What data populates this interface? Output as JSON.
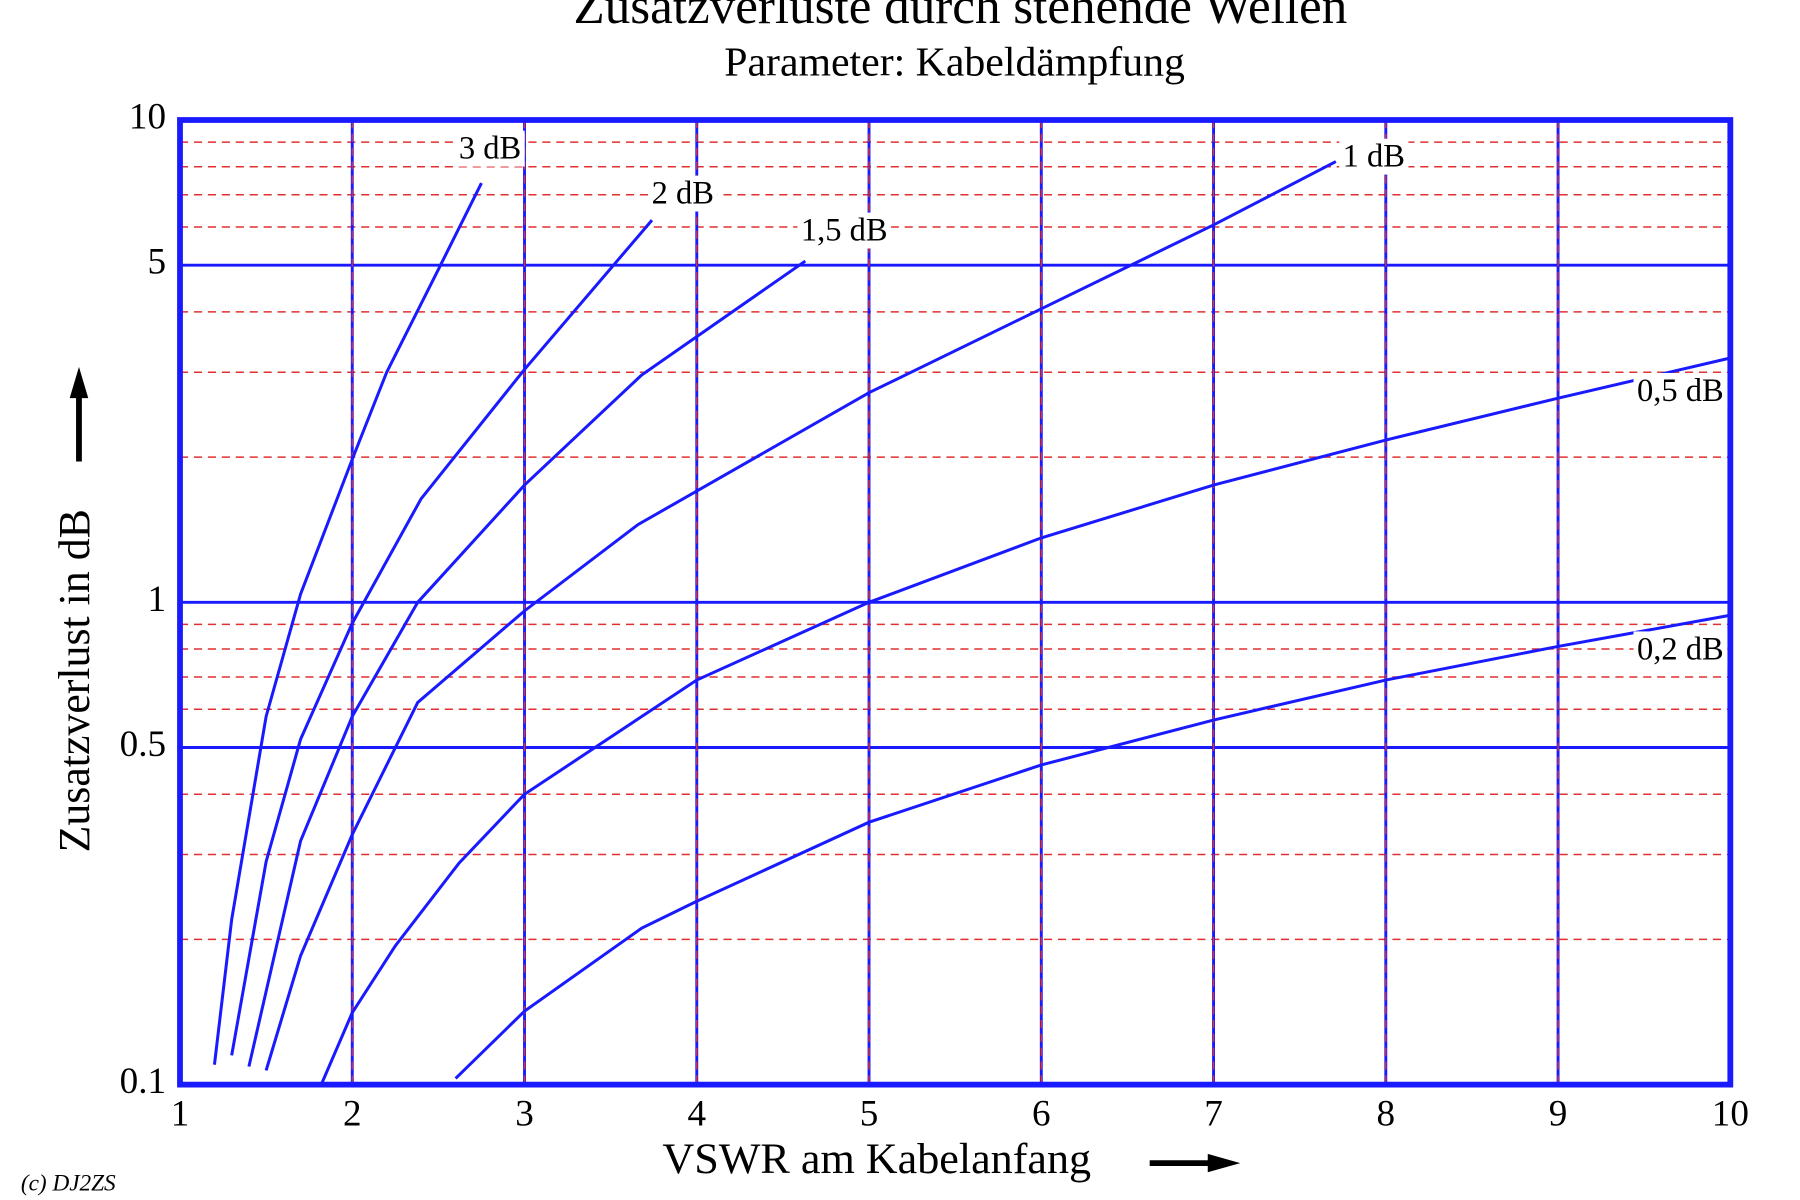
{
  "chart_data": {
    "type": "line",
    "title": "Zusatzverluste durch stehende Wellen",
    "subtitle": "Parameter: Kabeldämpfung",
    "x_label": "VSWR am Kabelanfang",
    "y_label": "Zusatzverlust in dB",
    "credit": "(c) DJ2ZS",
    "log_y": true,
    "grid": true,
    "xlim": [
      1,
      10
    ],
    "xticks": [
      1,
      2,
      3,
      4,
      5,
      6,
      7,
      8,
      9,
      10
    ],
    "ylim": [
      0.1,
      10
    ],
    "yticks": [
      0.1,
      0.5,
      1,
      5,
      10
    ],
    "minor_yticks": [
      0.2,
      0.3,
      0.4,
      0.6,
      0.7,
      0.8,
      0.9,
      2,
      3,
      4,
      6,
      7,
      8,
      9
    ],
    "series": [
      {
        "name": "3 dB",
        "color": "#1a1aff",
        "x": [
          1.2,
          1.3,
          1.5,
          1.7,
          2,
          2.2,
          2.5,
          2.75
        ],
        "values": [
          0.11,
          0.22,
          0.58,
          1.04,
          1.98,
          3.0,
          4.9,
          7.4
        ]
      },
      {
        "name": "2 dB",
        "color": "#1a1aff",
        "x": [
          1.3,
          1.5,
          1.7,
          2,
          2.4,
          3,
          3.74
        ],
        "values": [
          0.115,
          0.29,
          0.52,
          0.905,
          1.64,
          3.04,
          6.2
        ]
      },
      {
        "name": "1,5 dB",
        "color": "#1a1aff",
        "x": [
          1.4,
          1.7,
          2,
          2.38,
          3,
          3.68,
          4.63
        ],
        "values": [
          0.109,
          0.32,
          0.58,
          1.0,
          1.75,
          2.96,
          5.1
        ]
      },
      {
        "name": "1 dB",
        "color": "#1a1aff",
        "x": [
          1.5,
          1.7,
          2,
          2.38,
          3,
          3.66,
          5,
          6,
          7,
          7.71
        ],
        "values": [
          0.107,
          0.185,
          0.33,
          0.62,
          0.96,
          1.45,
          2.72,
          4.06,
          6.06,
          8.2
        ]
      },
      {
        "name": "0,5 dB",
        "color": "#1a1aff",
        "x": [
          1.82,
          2,
          2.25,
          2.62,
          3,
          4,
          5,
          6,
          7,
          8,
          9,
          10
        ],
        "values": [
          0.1,
          0.141,
          0.194,
          0.288,
          0.4,
          0.69,
          1.0,
          1.36,
          1.75,
          2.17,
          2.65,
          3.21
        ]
      },
      {
        "name": "0,2 dB",
        "color": "#1a1aff",
        "x": [
          2.6,
          3,
          3.68,
          4,
          5,
          6,
          7,
          8,
          9,
          10
        ],
        "values": [
          0.103,
          0.142,
          0.211,
          0.24,
          0.35,
          0.46,
          0.57,
          0.69,
          0.81,
          0.94
        ]
      }
    ]
  }
}
